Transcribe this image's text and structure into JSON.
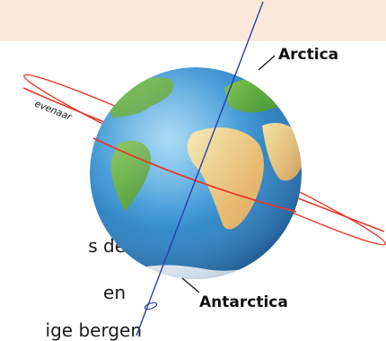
{
  "labels": {
    "arctic": "Arctica",
    "antarctic": "Antarctica",
    "equator": "evenaar"
  },
  "body_text": [
    "s de",
    "en",
    "ige bergen"
  ],
  "colors": {
    "top_band": "#fde9dc",
    "axis": "#2b3fa8",
    "equator_line": "#e53a2e",
    "ocean": "#2c84c8",
    "land_green": "#5aa83a",
    "land_yellow": "#e7d58c"
  }
}
